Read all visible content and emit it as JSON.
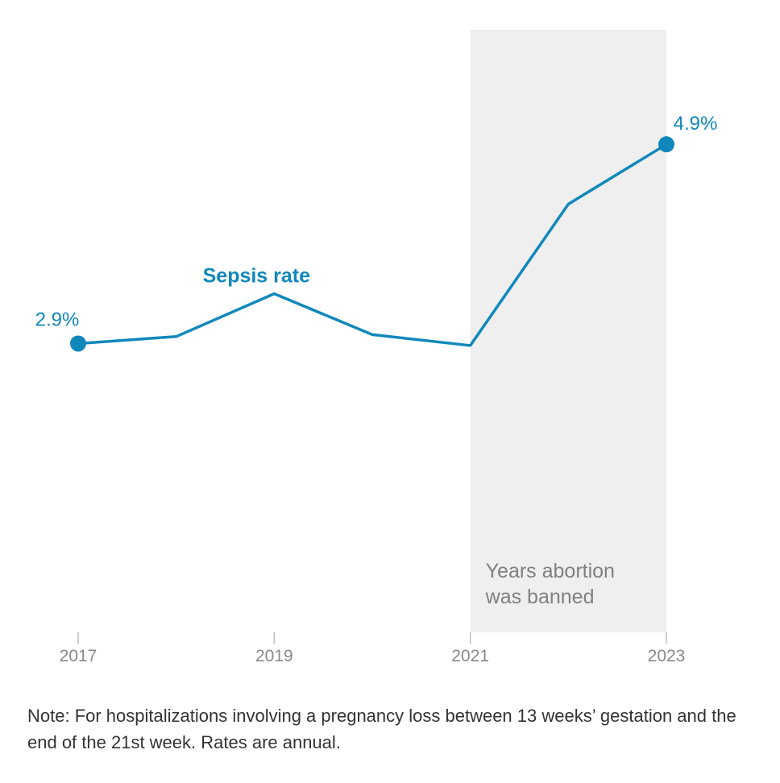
{
  "colors": {
    "line": "#1188bb",
    "shade": "#efefef",
    "axis": "#bbbbbb",
    "tick_text": "#888888",
    "shade_text": "#808080",
    "note_text": "#333333"
  },
  "chart_data": {
    "type": "line",
    "title": "",
    "xlabel": "",
    "ylabel": "",
    "x": [
      2017,
      2018,
      2019,
      2020,
      2021,
      2022,
      2023
    ],
    "series": [
      {
        "name": "Sepsis rate",
        "values": [
          2.9,
          2.97,
          3.4,
          2.99,
          2.88,
          4.3,
          4.9
        ]
      }
    ],
    "xlim": [
      2017,
      2023
    ],
    "ylim": [
      0,
      6.05
    ],
    "x_ticks": [
      "2017",
      "2019",
      "2021",
      "2023"
    ],
    "series_label": "Sepsis rate",
    "start_label": "2.9%",
    "end_label": "4.9%",
    "shaded_range": [
      2021,
      2023
    ],
    "shaded_label_lines": [
      "Years abortion",
      "was banned"
    ],
    "grid": false
  },
  "note": "Note: For hospitalizations involving a pregnancy loss between 13 weeks’ gestation and the end of the 21st week. Rates are annual."
}
